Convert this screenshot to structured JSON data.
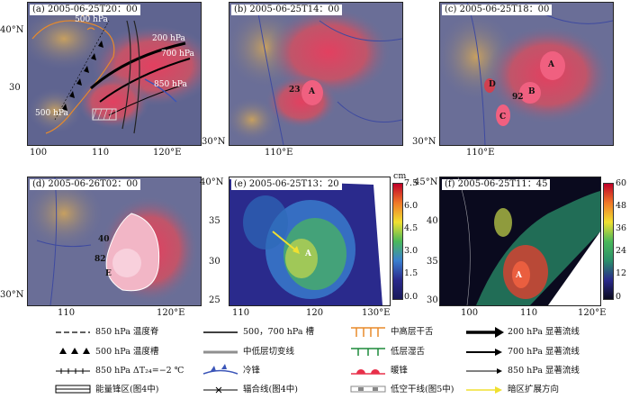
{
  "panels": {
    "a": {
      "title": "(a) 2005-06-25T20：00",
      "lat_ticks": [
        "40°N",
        "30"
      ],
      "lon_ticks": [
        "100",
        "110",
        "120°E"
      ],
      "contour_labels": [
        "500 hPa",
        "200 hPa",
        "700 hPa",
        "850 hPa",
        "500 hPa"
      ]
    },
    "b": {
      "title": "(b) 2005-06-25T14：00",
      "lat_ticks": [
        "30°N"
      ],
      "lon_ticks": [
        "110°E"
      ],
      "marks": [
        "23",
        "A"
      ]
    },
    "c": {
      "title": "(c) 2005-06-25T18：00",
      "lat_ticks": [
        "30°N"
      ],
      "lon_ticks": [
        "110°E"
      ],
      "marks": [
        "A",
        "D",
        "B",
        "92",
        "C"
      ]
    },
    "d": {
      "title": "(d) 2005-06-26T02：00",
      "lat_ticks": [
        "30°N"
      ],
      "lon_ticks": [
        "110",
        "120°E"
      ],
      "marks": [
        "40",
        "82",
        "E"
      ]
    },
    "e": {
      "title": "(e) 2005-06-25T13：20",
      "lat_ticks": [
        "40°N",
        "35",
        "30",
        "25"
      ],
      "lon_ticks": [
        "110",
        "120",
        "130°E"
      ],
      "marks": [
        "A"
      ],
      "cbar_unit": "cm",
      "cbar_ticks": [
        "7.5",
        "6.0",
        "4.5",
        "3.0",
        "1.5",
        "0.0"
      ]
    },
    "f": {
      "title": "(f) 2005-06-25T11：45",
      "lat_ticks": [
        "45°N",
        "40",
        "35",
        "30"
      ],
      "lon_ticks": [
        "100",
        "110",
        "120°E"
      ],
      "marks": [
        "A"
      ],
      "cbar_ticks": [
        "60",
        "48",
        "36",
        "24",
        "12",
        "0"
      ]
    }
  },
  "legend": {
    "col1": [
      "850 hPa 温度脊",
      "500 hPa 温度槽",
      "850 hPa ΔT₂₄=−2 ℃",
      "能量锋区(图4中)"
    ],
    "col2": [
      "500，700 hPa 槽",
      "中低层切变线",
      "冷锋",
      "辐合线(图4中)"
    ],
    "col3": [
      "中高层干舌",
      "低层湿舌",
      "暖锋",
      "低空干线(图5中)"
    ],
    "col4": [
      "200 hPa 显著流线",
      "700 hPa 显著流线",
      "850 hPa 显著流线",
      "暗区扩展方向"
    ]
  },
  "colors": {
    "warm": "#e8304a",
    "cold_front": "#3b55b8",
    "dry_tongue": "#e88a2a",
    "moist_tongue": "#1e8a3a",
    "shear": "#8f8f8f",
    "arrow_yellow": "#f0e030"
  }
}
